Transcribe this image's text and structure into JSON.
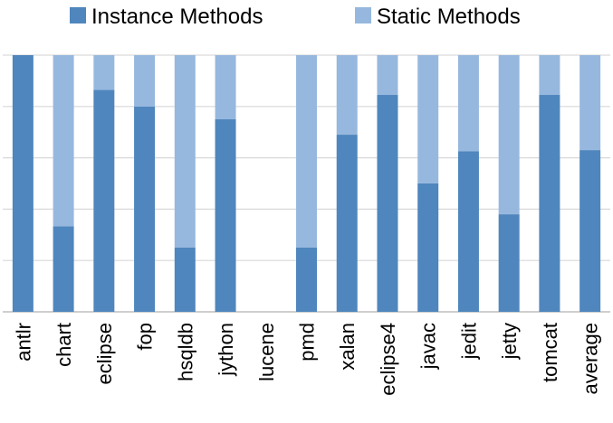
{
  "chart_data": {
    "type": "bar",
    "stacked": true,
    "normalized": true,
    "categories": [
      "antlr",
      "chart",
      "eclipse",
      "fop",
      "hsqldb",
      "jython",
      "lucene",
      "pmd",
      "xalan",
      "eclipse4",
      "javac",
      "jedit",
      "jetty",
      "tomcat",
      "average"
    ],
    "series": [
      {
        "name": "Instance Methods",
        "color": "#4f86bd",
        "values": [
          1.0,
          0.333,
          0.865,
          0.8,
          0.25,
          0.75,
          0,
          0.25,
          0.69,
          0.845,
          0.5,
          0.625,
          0.38,
          0.845,
          0.63
        ]
      },
      {
        "name": "Static Methods",
        "color": "#97b8de",
        "values": [
          0.0,
          0.667,
          0.135,
          0.2,
          0.75,
          0.25,
          0,
          0.75,
          0.31,
          0.155,
          0.5,
          0.375,
          0.62,
          0.155,
          0.37
        ]
      }
    ],
    "ylim": [
      0,
      1
    ],
    "grid": true,
    "legend_position": "top"
  }
}
